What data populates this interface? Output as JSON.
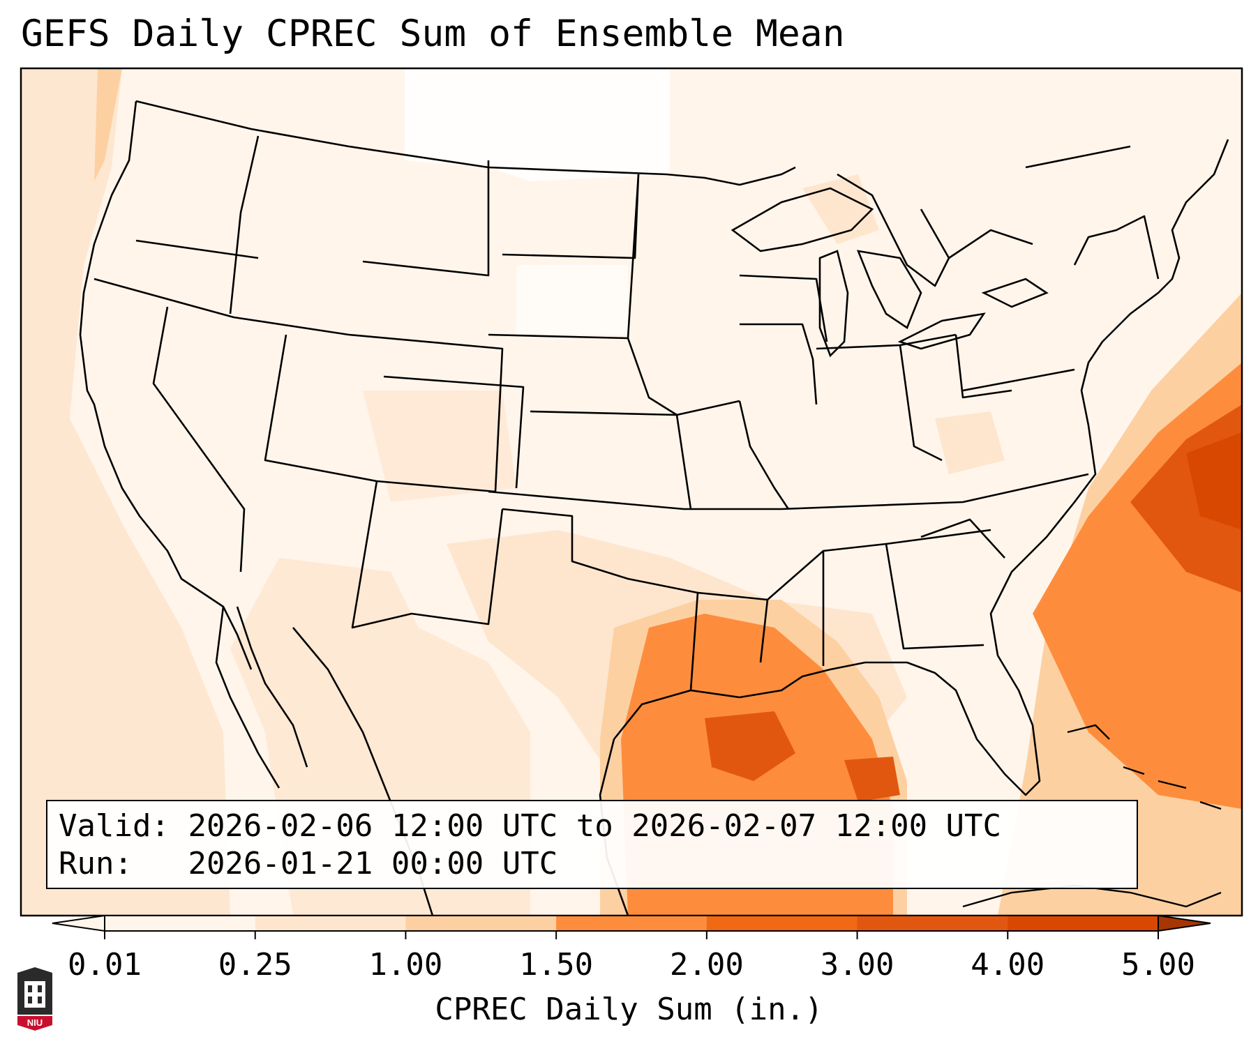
{
  "title": "GEFS Daily CPREC Sum of Ensemble Mean",
  "info": {
    "valid_label": "Valid:",
    "valid_value": "2026-02-06 12:00 UTC to 2026-02-07 12:00 UTC",
    "run_label": "Run:",
    "run_value": "2026-01-21 00:00 UTC"
  },
  "colorbar": {
    "label": "CPREC Daily Sum (in.)",
    "ticks": [
      "0.01",
      "0.25",
      "1.00",
      "1.50",
      "2.00",
      "3.00",
      "4.00",
      "5.00"
    ],
    "colors": [
      "#fff5eb",
      "#fee6ce",
      "#fdd0a2",
      "#fd8d3c",
      "#f16913",
      "#e2570f",
      "#d94801",
      "#a63603"
    ],
    "extend": "both"
  },
  "map": {
    "projection": "Lambert Conformal (CONUS)",
    "field": "convective precipitation daily sum",
    "units": "in."
  },
  "logo": {
    "text": "NIU",
    "icon": "university-seal-icon"
  }
}
